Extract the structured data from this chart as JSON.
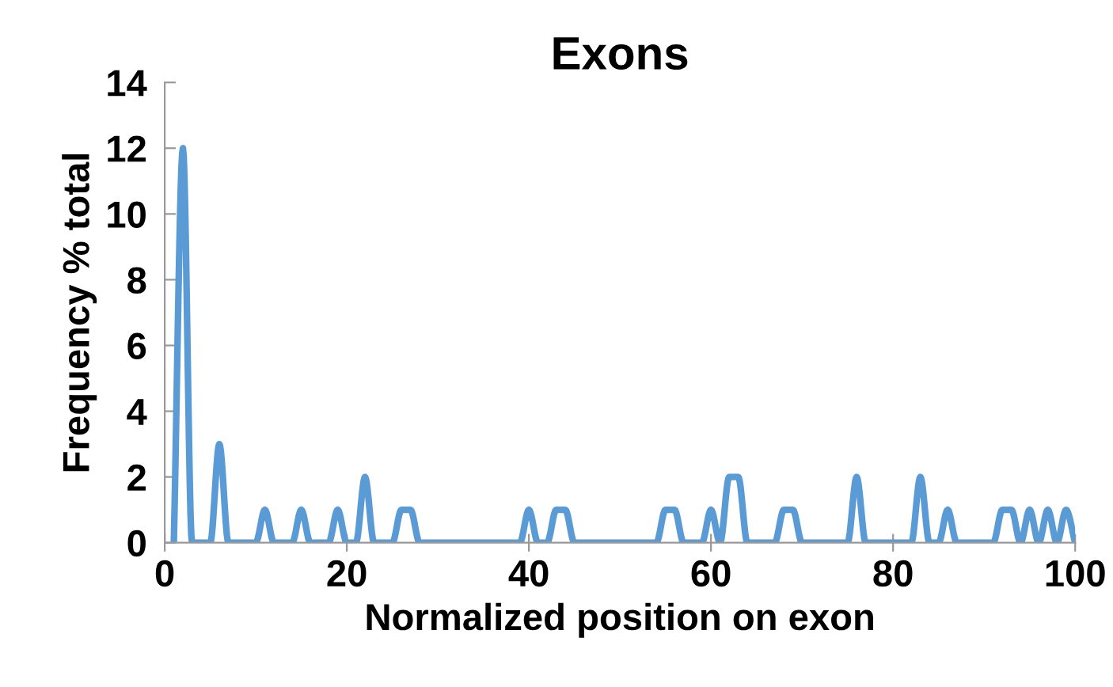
{
  "chart_data": {
    "type": "line",
    "title": "Exons",
    "xlabel": "Normalized position on exon",
    "ylabel": "Frequency % total",
    "x": [
      1,
      2,
      3,
      4,
      5,
      6,
      7,
      8,
      9,
      10,
      11,
      12,
      13,
      14,
      15,
      16,
      17,
      18,
      19,
      20,
      21,
      22,
      23,
      24,
      25,
      26,
      27,
      28,
      29,
      30,
      31,
      32,
      33,
      34,
      35,
      36,
      37,
      38,
      39,
      40,
      41,
      42,
      43,
      44,
      45,
      46,
      47,
      48,
      49,
      50,
      51,
      52,
      53,
      54,
      55,
      56,
      57,
      58,
      59,
      60,
      61,
      62,
      63,
      64,
      65,
      66,
      67,
      68,
      69,
      70,
      71,
      72,
      73,
      74,
      75,
      76,
      77,
      78,
      79,
      80,
      81,
      82,
      83,
      84,
      85,
      86,
      87,
      88,
      89,
      90,
      91,
      92,
      93,
      94,
      95,
      96,
      97,
      98,
      99,
      100
    ],
    "series": [
      {
        "color": "#5b9bd5",
        "values": [
          0,
          12,
          0,
          0,
          0,
          3,
          0,
          0,
          0,
          0,
          1,
          0,
          0,
          0,
          1,
          0,
          0,
          0,
          1,
          0,
          0,
          2,
          0,
          0,
          0,
          1,
          1,
          0,
          0,
          0,
          0,
          0,
          0,
          0,
          0,
          0,
          0,
          0,
          0,
          1,
          0,
          0,
          1,
          1,
          0,
          0,
          0,
          0,
          0,
          0,
          0,
          0,
          0,
          0,
          1,
          1,
          0,
          0,
          0,
          1,
          0,
          2,
          2,
          0,
          0,
          0,
          0,
          1,
          1,
          0,
          0,
          0,
          0,
          0,
          0,
          2,
          0,
          0,
          0,
          0,
          0,
          0,
          2,
          0,
          0,
          1,
          0,
          0,
          0,
          0,
          0,
          1,
          1,
          0,
          1,
          0,
          1,
          0,
          1,
          0
        ]
      }
    ],
    "xlim": [
      0,
      100
    ],
    "xticks": [
      0,
      20,
      40,
      60,
      80,
      100
    ],
    "ylim": [
      0,
      14
    ],
    "yticks": [
      0,
      2,
      4,
      6,
      8,
      10,
      12,
      14
    ],
    "grid": false,
    "marker": "none",
    "line_style": "solid"
  }
}
